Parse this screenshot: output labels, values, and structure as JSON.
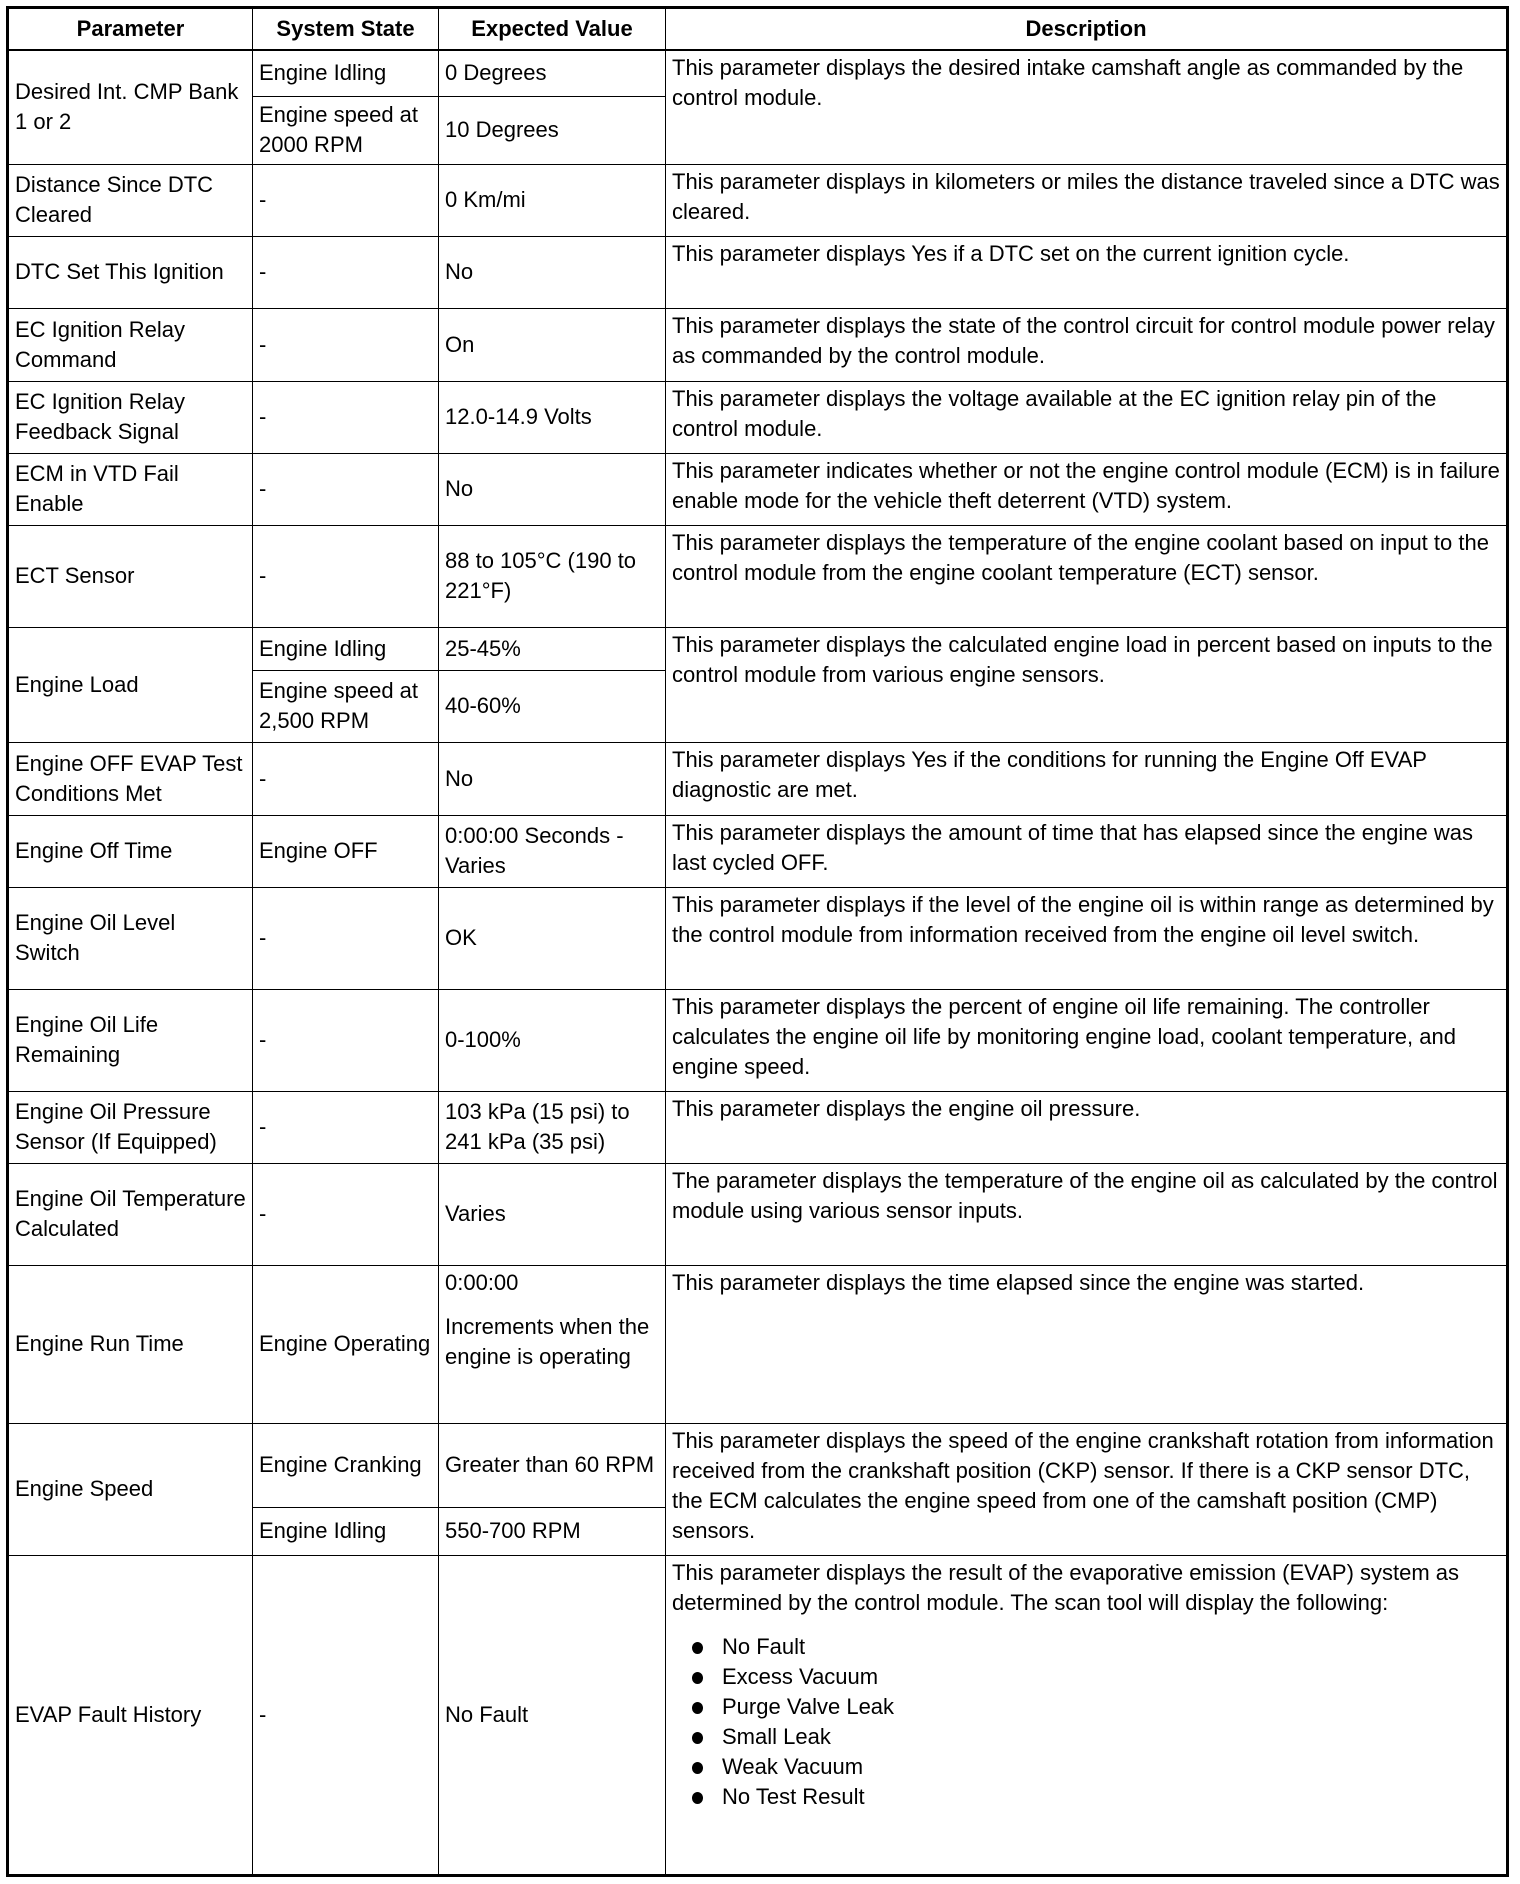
{
  "headers": [
    "Parameter",
    "System State",
    "Expected Value",
    "Description"
  ],
  "rows": [
    {
      "parameter": "Desired Int. CMP Bank 1 or 2",
      "states": [
        {
          "state": "Engine Idling",
          "value": "0 Degrees"
        },
        {
          "state": "Engine speed at 2000 RPM",
          "value": "10 Degrees"
        }
      ],
      "description": "This parameter displays the desired intake camshaft angle as commanded by the control module."
    },
    {
      "parameter": "Distance Since DTC Cleared",
      "states": [
        {
          "state": "-",
          "value": "0 Km/mi"
        }
      ],
      "description": "This parameter displays in kilometers or miles the distance traveled since a DTC was cleared."
    },
    {
      "parameter": "DTC Set This Ignition",
      "states": [
        {
          "state": "-",
          "value": "No"
        }
      ],
      "description": "This parameter displays Yes if a DTC set on the current ignition cycle."
    },
    {
      "parameter": "EC Ignition Relay Command",
      "states": [
        {
          "state": "-",
          "value": "On"
        }
      ],
      "description": "This parameter displays the state of the control circuit for control module power relay as commanded by the control module."
    },
    {
      "parameter": "EC Ignition Relay Feedback Signal",
      "states": [
        {
          "state": "-",
          "value": "12.0-14.9 Volts"
        }
      ],
      "description": "This parameter displays the voltage available at the EC ignition relay pin of the control module."
    },
    {
      "parameter": "ECM in VTD Fail Enable",
      "states": [
        {
          "state": "-",
          "value": "No"
        }
      ],
      "description": "This parameter indicates whether or not the engine control module (ECM) is in failure enable mode for the vehicle theft deterrent (VTD) system."
    },
    {
      "parameter": "ECT Sensor",
      "states": [
        {
          "state": "-",
          "value": "88 to 105°C (190 to 221°F)"
        }
      ],
      "description": "This parameter displays the temperature of the engine coolant based on input to the control module from the engine coolant temperature (ECT) sensor."
    },
    {
      "parameter": "Engine Load",
      "states": [
        {
          "state": "Engine Idling",
          "value": "25-45%"
        },
        {
          "state": "Engine speed at 2,500 RPM",
          "value": "40-60%"
        }
      ],
      "description": "This parameter displays the calculated engine load in percent based on inputs to the control module from various engine sensors."
    },
    {
      "parameter": "Engine OFF EVAP Test Conditions Met",
      "states": [
        {
          "state": "-",
          "value": "No"
        }
      ],
      "description": "This parameter displays Yes if the conditions for running the Engine Off EVAP diagnostic are met."
    },
    {
      "parameter": "Engine Off Time",
      "states": [
        {
          "state": "Engine OFF",
          "value": "0:00:00 Seconds - Varies"
        }
      ],
      "description": "This parameter displays the amount of time that has elapsed since the engine was last cycled OFF."
    },
    {
      "parameter": "Engine Oil Level Switch",
      "states": [
        {
          "state": "-",
          "value": "OK"
        }
      ],
      "description": "This parameter displays if the level of the engine oil is within range as determined by the control module from information received from the engine oil level switch."
    },
    {
      "parameter": "Engine Oil Life Remaining",
      "states": [
        {
          "state": "-",
          "value": "0-100%"
        }
      ],
      "description": "This parameter displays the percent of engine oil life remaining. The controller calculates the engine oil life by monitoring engine load, coolant temperature, and engine speed."
    },
    {
      "parameter": "Engine Oil Pressure Sensor (If Equipped)",
      "states": [
        {
          "state": "-",
          "value": "103 kPa (15 psi) to 241 kPa (35 psi)"
        }
      ],
      "description": "This parameter displays the engine oil pressure."
    },
    {
      "parameter": "Engine Oil Temperature Calculated",
      "states": [
        {
          "state": "-",
          "value": "Varies"
        }
      ],
      "description": "The parameter displays the temperature of the engine oil as calculated by the control module using various sensor inputs."
    },
    {
      "parameter": "Engine Run Time",
      "states": [
        {
          "state": "Engine Operating",
          "value": "0:00:00",
          "value_note": "Increments when the engine is operating"
        }
      ],
      "description": "This parameter displays the time elapsed since the engine was started."
    },
    {
      "parameter": "Engine Speed",
      "states": [
        {
          "state": "Engine Cranking",
          "value": "Greater than 60 RPM"
        },
        {
          "state": "Engine Idling",
          "value": "550-700 RPM"
        }
      ],
      "description": "This parameter displays the speed of the engine crankshaft rotation from information received from the crankshaft position (CKP) sensor. If there is a CKP sensor DTC, the ECM calculates the engine speed from one of the camshaft position (CMP) sensors."
    },
    {
      "parameter": "EVAP Fault History",
      "states": [
        {
          "state": "-",
          "value": "No Fault"
        }
      ],
      "description": "This parameter displays the result of the evaporative emission (EVAP) system as determined by the control module. The scan tool will display the following:",
      "bullets": [
        "No Fault",
        "Excess Vacuum",
        "Purge Valve Leak",
        "Small Leak",
        "Weak Vacuum",
        "No Test Result"
      ]
    }
  ]
}
